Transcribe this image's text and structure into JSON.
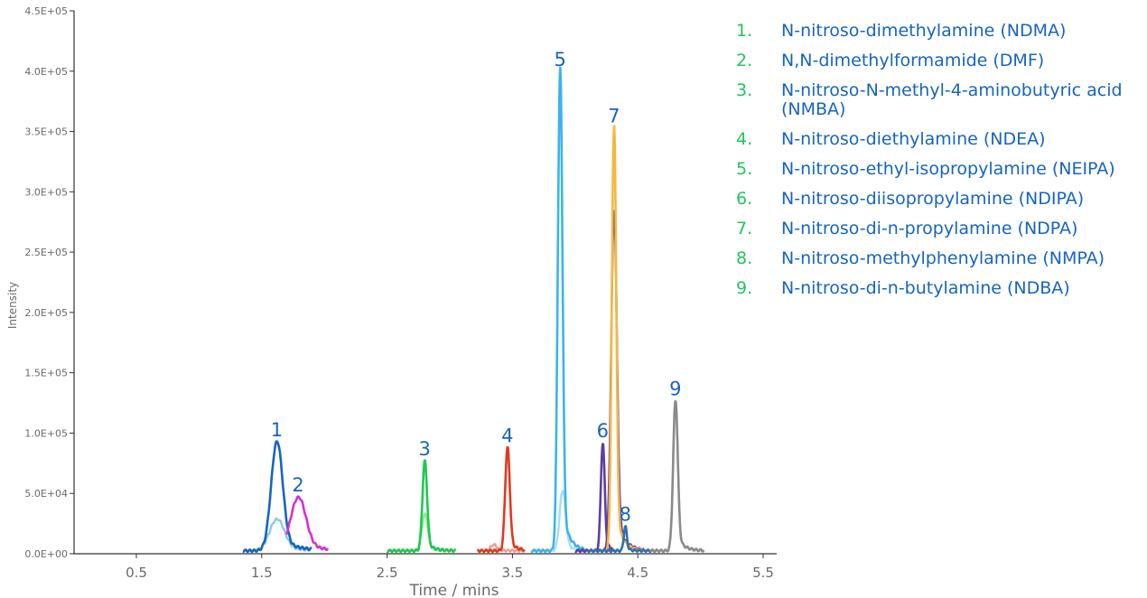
{
  "chart_data": {
    "type": "line",
    "xlabel": "Time / mins",
    "ylabel": "Intensity",
    "xlim": [
      0,
      5.5
    ],
    "ylim": [
      0,
      450000
    ],
    "x_ticks": [
      "0.5",
      "1.5",
      "2.5",
      "3.5",
      "4.5",
      "5.5"
    ],
    "y_ticks": [
      "0.0E+00",
      "5.0E+04",
      "1.0E+05",
      "1.5E+05",
      "2.0E+05",
      "2.5E+05",
      "3.0E+05",
      "3.5E+05",
      "4.0E+05",
      "4.5E+05"
    ],
    "grid": false,
    "legend_position": "top-right",
    "peaks": [
      {
        "label": "1",
        "color": "#1565c0",
        "rt": 1.62,
        "height": 90000,
        "width": 0.045,
        "baseline": [
          1.35,
          1.9
        ],
        "trace_color": "#1565c0",
        "secondary": {
          "color": "#8ec5ee",
          "height": 26000,
          "rt": 1.62
        }
      },
      {
        "label": "2",
        "color": "#d62ed6",
        "rt": 1.79,
        "height": 44000,
        "width": 0.06,
        "baseline": [
          1.7,
          2.03
        ],
        "trace_color": "#d62ed6"
      },
      {
        "label": "3",
        "color": "#22c55e",
        "rt": 2.8,
        "height": 74000,
        "width": 0.018,
        "baseline": [
          2.5,
          3.05
        ],
        "trace_color": "#1ec850",
        "secondary": {
          "color": "#90ee90",
          "height": 30000,
          "rt": 2.8
        }
      },
      {
        "label": "4",
        "color": "#e03a1e",
        "rt": 3.46,
        "height": 85000,
        "width": 0.018,
        "baseline": [
          3.22,
          3.6
        ],
        "trace_color": "#e03a1e",
        "secondary": {
          "color": "#f29a8c",
          "height": 5000,
          "rt": 3.35
        }
      },
      {
        "label": "5",
        "color": "#3ab4ec",
        "rt": 3.88,
        "height": 397000,
        "width": 0.018,
        "baseline": [
          3.65,
          4.08
        ],
        "trace_color": "#3ab4ec",
        "secondary": {
          "color": "#a8dcf5",
          "height": 50000,
          "rt": 3.9
        }
      },
      {
        "label": "6",
        "color": "#5b3ea6",
        "rt": 4.22,
        "height": 89000,
        "width": 0.015,
        "baseline": [
          4.0,
          4.3
        ],
        "trace_color": "#5b3ea6"
      },
      {
        "label": "7",
        "color": "#f7b740",
        "rt": 4.31,
        "height": 350000,
        "width": 0.017,
        "baseline": [
          4.2,
          4.55
        ],
        "trace_color": "#f7b740",
        "secondary": {
          "color": "#5b3ea6",
          "height": 280000,
          "rt": 4.31
        }
      },
      {
        "label": "8",
        "color": "#2f6fb0",
        "rt": 4.4,
        "height": 20000,
        "width": 0.012,
        "baseline": [
          4.1,
          4.65
        ],
        "trace_color": "#2f6fb0"
      },
      {
        "label": "9",
        "color": "#8a8a8a",
        "rt": 4.8,
        "height": 124000,
        "width": 0.018,
        "baseline": [
          4.6,
          5.03
        ],
        "trace_color": "#8a8a8a"
      }
    ],
    "legend": [
      {
        "num": "1.",
        "name": "N-nitroso-dimethylamine (NDMA)"
      },
      {
        "num": "2.",
        "name": "N,N-dimethylformamide (DMF)"
      },
      {
        "num": "3.",
        "name": "N-nitroso-N-methyl-4-aminobutyric acid (NMBA)"
      },
      {
        "num": "4.",
        "name": "N-nitroso-diethylamine (NDEA)"
      },
      {
        "num": "5.",
        "name": "N-nitroso-ethyl-isopropylamine (NEIPA)"
      },
      {
        "num": "6.",
        "name": "N-nitroso-diisopropylamine (NDIPA)"
      },
      {
        "num": "7.",
        "name": "N-nitroso-di-n-propylamine (NDPA)"
      },
      {
        "num": "8.",
        "name": "N-nitroso-methylphenylamine (NMPA)"
      },
      {
        "num": "9.",
        "name": "N-nitroso-di-n-butylamine (NDBA)"
      }
    ]
  }
}
